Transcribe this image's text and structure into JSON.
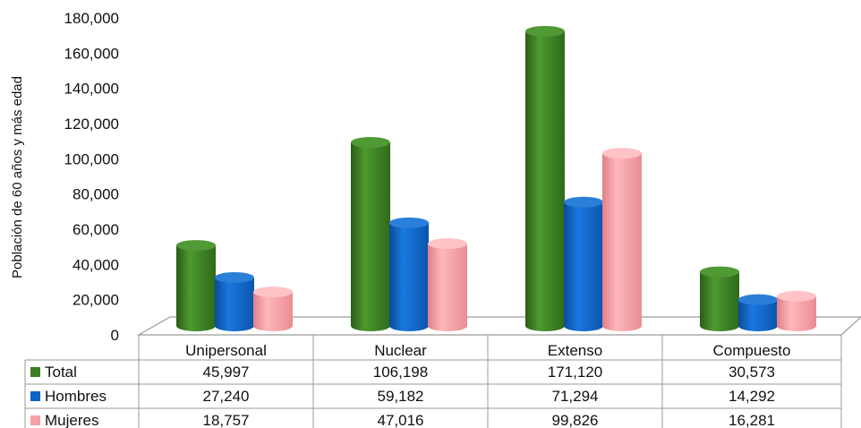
{
  "chart_data": {
    "type": "bar",
    "ylabel": "Población de 60 años y más edad",
    "ylim": [
      0,
      180000
    ],
    "yticks": [
      "0",
      "20,000",
      "40,000",
      "60,000",
      "80,000",
      "100,000",
      "120,000",
      "140,000",
      "160,000",
      "180,000"
    ],
    "categories": [
      "Unipersonal",
      "Nuclear",
      "Extenso",
      "Compuesto"
    ],
    "series": [
      {
        "name": "Total",
        "color": "#3e7d25",
        "values": [
          45997,
          106198,
          171120,
          30573
        ],
        "labels": [
          "45,997",
          "106,198",
          "171,120",
          "30,573"
        ]
      },
      {
        "name": "Hombres",
        "color": "#0f63c4",
        "values": [
          27240,
          59182,
          71294,
          14292
        ],
        "labels": [
          "27,240",
          "59,182",
          "71,294",
          "14,292"
        ]
      },
      {
        "name": "Mujeres",
        "color": "#f4a0a6",
        "values": [
          18757,
          47016,
          99826,
          16281
        ],
        "labels": [
          "18,757",
          "47,016",
          "99,826",
          "16,281"
        ]
      }
    ],
    "grid": false,
    "legend": "data-table"
  }
}
